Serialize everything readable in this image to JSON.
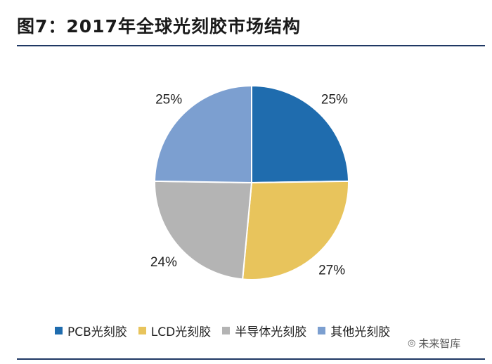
{
  "title": "图7：2017年全球光刻胶市场结构",
  "chart_data": {
    "type": "pie",
    "title": "",
    "start_angle_deg": 0,
    "direction": "clockwise",
    "slices": [
      {
        "name": "PCB光刻胶",
        "value": 25,
        "label": "25%",
        "color": "#1f6cae"
      },
      {
        "name": "LCD光刻胶",
        "value": 27,
        "label": "27%",
        "color": "#e8c45c"
      },
      {
        "name": "半导体光刻胶",
        "value": 24,
        "label": "24%",
        "color": "#b4b4b4"
      },
      {
        "name": "其他光刻胶",
        "value": 25,
        "label": "25%",
        "color": "#7c9fd0"
      }
    ],
    "legend_placement": "bottom"
  },
  "legend": [
    {
      "label": "PCB光刻胶",
      "color": "#1f6cae"
    },
    {
      "label": "LCD光刻胶",
      "color": "#e8c45c"
    },
    {
      "label": "半导体光刻胶",
      "color": "#b4b4b4"
    },
    {
      "label": "其他光刻胶",
      "color": "#7c9fd0"
    }
  ],
  "watermark": {
    "icon": "wechat-icon",
    "text": "未来智库"
  }
}
